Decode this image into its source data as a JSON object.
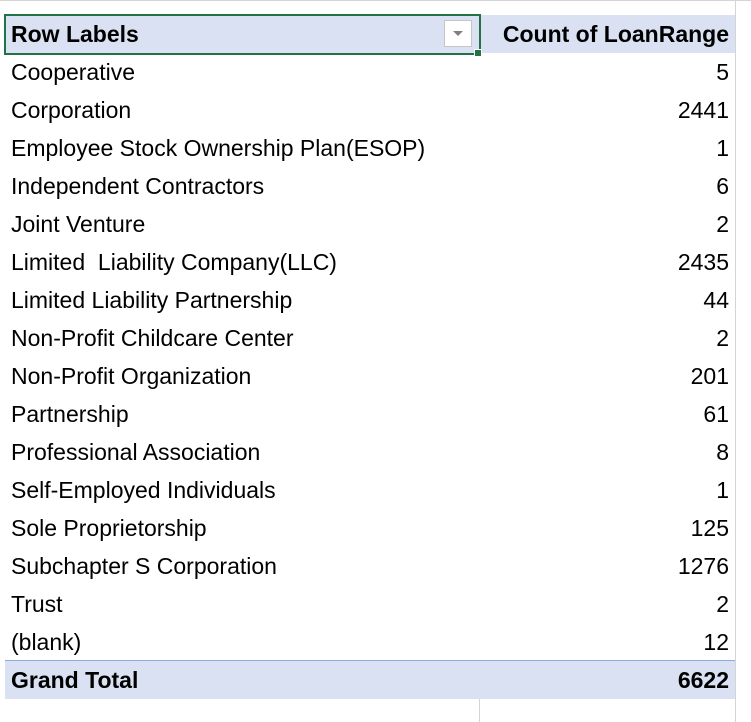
{
  "table": {
    "header": [
      "Row Labels",
      "Count of LoanRange"
    ],
    "rows": [
      [
        "Cooperative",
        5
      ],
      [
        "Corporation",
        2441
      ],
      [
        "Employee Stock Ownership Plan(ESOP)",
        1
      ],
      [
        "Independent Contractors",
        6
      ],
      [
        "Joint Venture",
        2
      ],
      [
        "Limited  Liability Company(LLC)",
        2435
      ],
      [
        "Limited Liability Partnership",
        44
      ],
      [
        "Non-Profit Childcare Center",
        2
      ],
      [
        "Non-Profit Organization",
        201
      ],
      [
        "Partnership",
        61
      ],
      [
        "Professional Association",
        8
      ],
      [
        "Self-Employed Individuals",
        1
      ],
      [
        "Sole Proprietorship",
        125
      ],
      [
        "Subchapter S Corporation",
        1276
      ],
      [
        "Trust",
        2
      ],
      [
        "(blank)",
        12
      ]
    ],
    "total": [
      "Grand Total",
      6622
    ]
  }
}
